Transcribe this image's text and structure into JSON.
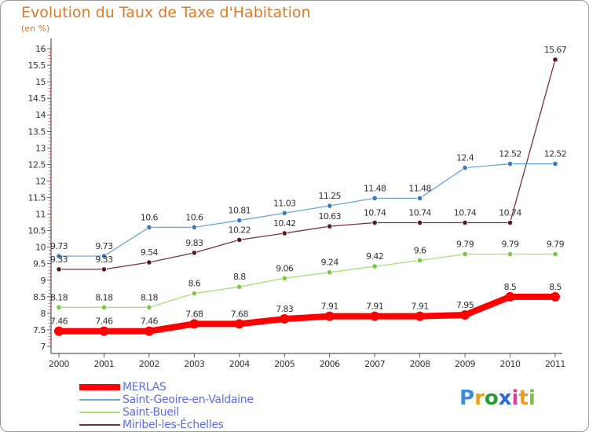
{
  "chart_data": {
    "type": "line",
    "title": "Evolution du Taux de Taxe d'Habitation",
    "unit": "(en %)",
    "x": [
      "2000",
      "2001",
      "2002",
      "2003",
      "2004",
      "2005",
      "2006",
      "2007",
      "2008",
      "2009",
      "2010",
      "2011"
    ],
    "y_ticks": [
      "7",
      "7.5",
      "8",
      "8.5",
      "9",
      "9.5",
      "10",
      "10.5",
      "11",
      "11.5",
      "12",
      "12.5",
      "13",
      "13.5",
      "14",
      "14.5",
      "15",
      "15.5",
      "16"
    ],
    "ylim": [
      7,
      16
    ],
    "grid": false,
    "legend_position": "bottom-left",
    "series": [
      {
        "name": "MERLAS",
        "color": "#ff0000",
        "values": [
          7.46,
          7.46,
          7.46,
          7.68,
          7.68,
          7.83,
          7.91,
          7.91,
          7.91,
          7.95,
          8.5,
          8.5
        ],
        "labels": [
          "7.46",
          "7.46",
          "7.46",
          "7.68",
          "7.68",
          "7.83",
          "7.91",
          "7.91",
          "7.91",
          "7.95",
          "8.5",
          "8.5"
        ]
      },
      {
        "name": "Saint-Geoire-en-Valdaine",
        "color": "#6aa6d8",
        "values": [
          9.73,
          9.73,
          10.6,
          10.6,
          10.81,
          11.03,
          11.25,
          11.48,
          11.48,
          12.4,
          12.52,
          12.52
        ],
        "labels": [
          "9.73",
          "9.73",
          "10.6",
          "10.6",
          "10.81",
          "11.03",
          "11.25",
          "11.48",
          "11.48",
          "12.4",
          "12.52",
          "12.52"
        ]
      },
      {
        "name": "Saint-Bueil",
        "color": "#a6e07a",
        "values": [
          8.18,
          8.18,
          8.18,
          8.6,
          8.8,
          9.06,
          9.24,
          9.42,
          9.6,
          9.79,
          9.79,
          9.79
        ],
        "labels": [
          "8.18",
          "8.18",
          "8.18",
          "8.6",
          "8.8",
          "9.06",
          "9.24",
          "9.42",
          "9.6",
          "9.79",
          "9.79",
          "9.79"
        ]
      },
      {
        "name": "Miribel-les-Échelles",
        "color": "#7a3338",
        "values": [
          9.33,
          9.33,
          9.54,
          9.83,
          10.22,
          10.42,
          10.63,
          10.74,
          10.74,
          10.74,
          10.74,
          15.67
        ],
        "labels": [
          "9.33",
          "9.33",
          "9.54",
          "9.83",
          "10.22",
          "10.42",
          "10.63",
          "10.74",
          "10.74",
          "10.74",
          "10.74",
          "15.67"
        ]
      }
    ]
  },
  "logo": {
    "text": "Proxiti"
  }
}
